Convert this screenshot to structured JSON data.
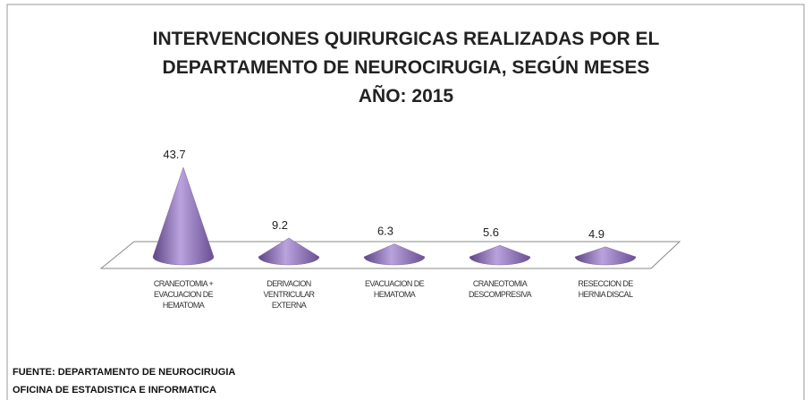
{
  "chart_data": {
    "type": "cone",
    "title": [
      "INTERVENCIONES QUIRURGICAS REALIZADAS POR EL",
      "DEPARTAMENTO DE NEUROCIRUGIA, SEGÚN MESES",
      "AÑO: 2015"
    ],
    "categories": [
      "CRANEOTOMIA + EVACUACION DE HEMATOMA",
      "DERIVACION VENTRICULAR EXTERNA",
      "EVACUACION DE HEMATOMA",
      "CRANEOTOMIA DESCOMPRESIVA",
      "RESECCION DE HERNIA DISCAL"
    ],
    "values": [
      43.7,
      9.2,
      6.3,
      5.6,
      4.9
    ],
    "color": "#8064a2",
    "source": [
      "FUENTE: DEPARTAMENTO DE NEUROCIRUGIA",
      "OFICINA DE ESTADISTICA E INFORMATICA"
    ]
  }
}
